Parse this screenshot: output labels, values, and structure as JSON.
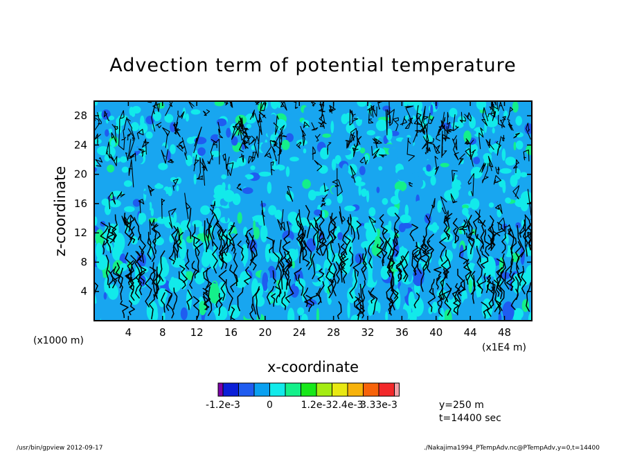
{
  "chart_data": {
    "type": "heatmap",
    "title": "Advection term of potential temperature",
    "xlabel": "x-coordinate",
    "ylabel": "z-coordinate",
    "x_unit_note": "(x1E4 m)",
    "y_unit_note": "(x1000 m)",
    "xlim": [
      0,
      51.2
    ],
    "ylim": [
      0,
      30
    ],
    "x_ticks": [
      4,
      8,
      12,
      16,
      20,
      24,
      28,
      32,
      36,
      40,
      44,
      48
    ],
    "y_ticks": [
      4,
      8,
      12,
      16,
      20,
      24,
      28
    ],
    "colorbar": {
      "colors": [
        "#7b00a8",
        "#0a1fd8",
        "#1f5cf0",
        "#0aa0f0",
        "#12eaea",
        "#14f08a",
        "#18e81a",
        "#a4ec12",
        "#e8e812",
        "#f7b20a",
        "#f7630a",
        "#f2282a",
        "#f3a0a8"
      ],
      "tick_labels": [
        "-1.2e-3",
        "0",
        "1.2e-3",
        "2.4e-3",
        "3.33e-3"
      ]
    },
    "annotation": [
      "y=250 m",
      "t=14400 sec"
    ]
  },
  "footer": {
    "left": "/usr/bin/gpview   2012-09-17",
    "right": "./Nakajima1994_PTempAdv.nc@PTempAdv,y=0,t=14400"
  }
}
